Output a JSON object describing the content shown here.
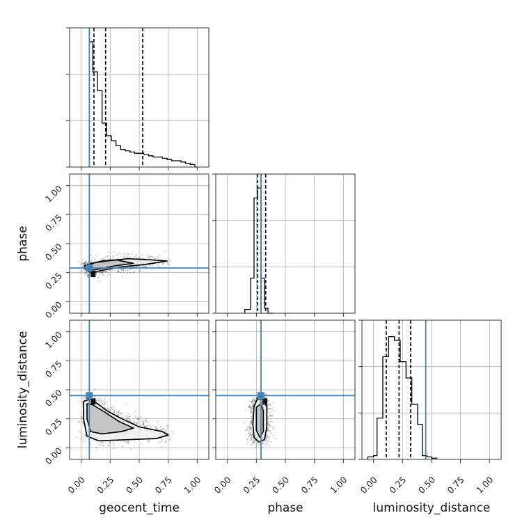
{
  "chart_data": {
    "type": "corner",
    "parameters": [
      "geocent_time",
      "phase",
      "luminosity_distance"
    ],
    "axis_labels": {
      "geocent_time": "geocent_time",
      "phase": "phase",
      "luminosity_distance": "luminosity_distance"
    },
    "ticks": [
      0.0,
      0.25,
      0.5,
      0.75,
      1.0
    ],
    "tick_labels": [
      "0.00",
      "0.25",
      "0.50",
      "0.75",
      "1.00"
    ],
    "xlim": [
      -0.1,
      1.1
    ],
    "ylim": [
      -0.1,
      1.1
    ],
    "grid": true,
    "truths": {
      "geocent_time": 0.07,
      "phase": 0.29,
      "luminosity_distance": 0.45,
      "color": "#4682b4"
    },
    "marginals": {
      "geocent_time": {
        "quantiles": [
          0.11,
          0.21,
          0.53
        ],
        "bins": [
          0.07,
          0.1,
          0.14,
          0.18,
          0.22,
          0.26,
          0.3,
          0.34,
          0.38,
          0.42,
          0.46,
          0.5,
          0.54,
          0.58,
          0.62,
          0.66,
          0.7,
          0.74,
          0.78,
          0.82,
          0.86,
          0.9,
          0.94,
          0.98,
          1.0
        ],
        "counts": [
          1.0,
          0.76,
          0.61,
          0.35,
          0.25,
          0.21,
          0.17,
          0.14,
          0.13,
          0.12,
          0.11,
          0.11,
          0.1,
          0.09,
          0.08,
          0.08,
          0.07,
          0.06,
          0.05,
          0.05,
          0.04,
          0.03,
          0.02,
          0.0
        ],
        "ymax": 1.0
      },
      "phase": {
        "quantiles": [
          0.26,
          0.29,
          0.33
        ],
        "bins": [
          0.15,
          0.2,
          0.23,
          0.26,
          0.29,
          0.32,
          0.35,
          0.4
        ],
        "counts": [
          0.03,
          0.28,
          0.92,
          1.0,
          0.28,
          0.04,
          0.0
        ],
        "ymax": 1.0
      },
      "luminosity_distance": {
        "quantiles": [
          0.11,
          0.22,
          0.32
        ],
        "bins": [
          -0.05,
          0.0,
          0.03,
          0.08,
          0.13,
          0.18,
          0.23,
          0.28,
          0.33,
          0.38,
          0.42,
          0.46,
          0.5,
          0.55
        ],
        "counts": [
          0.02,
          0.03,
          0.33,
          0.82,
          0.98,
          0.95,
          0.78,
          0.65,
          0.44,
          0.28,
          0.03,
          0.02,
          0.01
        ],
        "ymax": 1.0
      }
    },
    "joint": [
      {
        "x": "geocent_time",
        "y": "phase",
        "contours": [
          [
            [
              0.03,
              0.29
            ],
            [
              0.06,
              0.26
            ],
            [
              0.1,
              0.25
            ],
            [
              0.18,
              0.27
            ],
            [
              0.35,
              0.3
            ],
            [
              0.55,
              0.32
            ],
            [
              0.74,
              0.35
            ],
            [
              0.6,
              0.36
            ],
            [
              0.4,
              0.37
            ],
            [
              0.22,
              0.35
            ],
            [
              0.08,
              0.33
            ],
            [
              0.03,
              0.31
            ]
          ],
          [
            [
              0.06,
              0.29
            ],
            [
              0.09,
              0.27
            ],
            [
              0.15,
              0.28
            ],
            [
              0.3,
              0.31
            ],
            [
              0.45,
              0.33
            ],
            [
              0.3,
              0.36
            ],
            [
              0.18,
              0.35
            ],
            [
              0.1,
              0.33
            ],
            [
              0.06,
              0.31
            ]
          ]
        ]
      },
      {
        "x": "geocent_time",
        "y": "luminosity_distance",
        "contours": [
          [
            [
              0.02,
              0.4
            ],
            [
              0.02,
              0.25
            ],
            [
              0.05,
              0.1
            ],
            [
              0.15,
              0.06
            ],
            [
              0.4,
              0.07
            ],
            [
              0.65,
              0.08
            ],
            [
              0.75,
              0.11
            ],
            [
              0.7,
              0.14
            ],
            [
              0.5,
              0.18
            ],
            [
              0.35,
              0.25
            ],
            [
              0.22,
              0.32
            ],
            [
              0.14,
              0.38
            ],
            [
              0.08,
              0.42
            ]
          ],
          [
            [
              0.05,
              0.38
            ],
            [
              0.05,
              0.25
            ],
            [
              0.08,
              0.14
            ],
            [
              0.18,
              0.12
            ],
            [
              0.35,
              0.14
            ],
            [
              0.45,
              0.17
            ],
            [
              0.32,
              0.23
            ],
            [
              0.2,
              0.31
            ],
            [
              0.1,
              0.37
            ]
          ]
        ]
      },
      {
        "x": "phase",
        "y": "luminosity_distance",
        "contours": [
          [
            [
              0.23,
              0.36
            ],
            [
              0.22,
              0.2
            ],
            [
              0.23,
              0.09
            ],
            [
              0.27,
              0.05
            ],
            [
              0.32,
              0.07
            ],
            [
              0.34,
              0.18
            ],
            [
              0.34,
              0.35
            ],
            [
              0.31,
              0.42
            ],
            [
              0.26,
              0.42
            ]
          ],
          [
            [
              0.25,
              0.35
            ],
            [
              0.25,
              0.15
            ],
            [
              0.28,
              0.09
            ],
            [
              0.31,
              0.14
            ],
            [
              0.31,
              0.32
            ],
            [
              0.29,
              0.38
            ]
          ]
        ]
      }
    ]
  }
}
